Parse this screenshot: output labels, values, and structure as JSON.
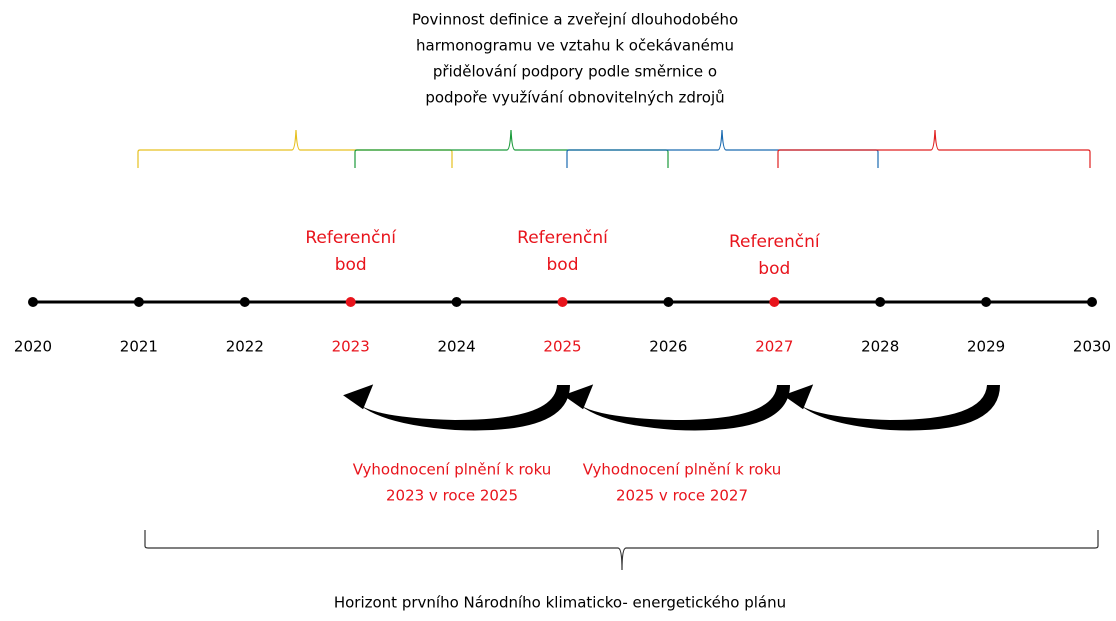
{
  "note": {
    "lines": [
      "Povinnost definice a zveřejní dlouhodobého",
      "harmonogramu ve vztahu k očekávanému",
      "přidělování podpory podle směrnice o",
      "podpoře využívání obnovitelných zdrojů"
    ]
  },
  "timeline": {
    "years": [
      {
        "label": "2020",
        "reference": false
      },
      {
        "label": "2021",
        "reference": false
      },
      {
        "label": "2022",
        "reference": false
      },
      {
        "label": "2023",
        "reference": true
      },
      {
        "label": "2024",
        "reference": false
      },
      {
        "label": "2025",
        "reference": true
      },
      {
        "label": "2026",
        "reference": false
      },
      {
        "label": "2027",
        "reference": true
      },
      {
        "label": "2028",
        "reference": false
      },
      {
        "label": "2029",
        "reference": false
      },
      {
        "label": "2030",
        "reference": false
      }
    ]
  },
  "reference_points": [
    {
      "lines": [
        "Referenční",
        "bod"
      ]
    },
    {
      "lines": [
        "Referenční",
        "bod"
      ]
    },
    {
      "lines": [
        "Referenční",
        "bod"
      ]
    }
  ],
  "evaluations": [
    {
      "lines": [
        "Vyhodnocení plnění k roku",
        "2023 v roce 2025"
      ]
    },
    {
      "lines": [
        "Vyhodnocení plnění k roku",
        "2025 v roce 2027"
      ]
    }
  ],
  "horizon": "Horizont prvního Národního klimaticko- energetického plánu"
}
